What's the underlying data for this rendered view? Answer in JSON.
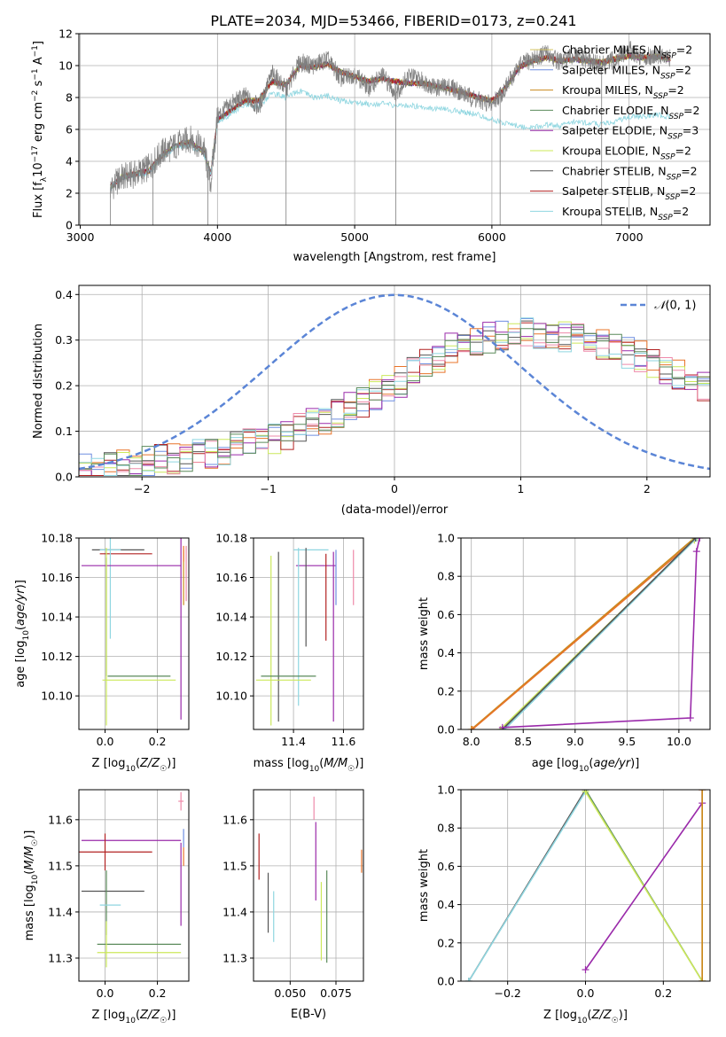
{
  "figure": {
    "title": "PLATE=2034, MJD=53466, FIBERID=0173, z=0.241",
    "colors": {
      "chabrier_miles": "#d4c463",
      "salpeter_miles": "#6e8de0",
      "kroupa_miles": "#c98a1c",
      "chabrier_elodie": "#5a8a5a",
      "salpeter_elodie": "#9a2aaa",
      "kroupa_elodie": "#cce85a",
      "chabrier_stelib": "#555555",
      "salpeter_stelib": "#b22222",
      "kroupa_stelib": "#8fd6e0",
      "orange": "#e8742a",
      "pink": "#ee8aaa",
      "data": "#808080"
    }
  },
  "chart_data": [
    {
      "type": "line",
      "id": "spectrum",
      "xlabel": "wavelength [Angstrom, rest frame]",
      "ylabel": "Flux [fλ10⁻¹⁷ erg cm⁻² s⁻¹ A⁻¹]",
      "xlim": [
        2990,
        7590
      ],
      "ylim": [
        0,
        12
      ],
      "xticks": [
        3000,
        4000,
        5000,
        6000,
        7000
      ],
      "yticks": [
        0,
        2,
        4,
        6,
        8,
        10,
        12
      ],
      "legend_position": "right",
      "legend": [
        "Chabrier MILES, N_SSP=2",
        "Salpeter MILES, N_SSP=2",
        "Kroupa MILES, N_SSP=2",
        "Chabrier ELODIE, N_SSP=2",
        "Salpeter ELODIE, N_SSP=3",
        "Kroupa ELODIE, N_SSP=2",
        "Chabrier STELIB, N_SSP=2",
        "Salpeter STELIB, N_SSP=2",
        "Kroupa STELIB, N_SSP=2"
      ],
      "legend_keys": [
        "chabrier_miles",
        "salpeter_miles",
        "kroupa_miles",
        "chabrier_elodie",
        "salpeter_elodie",
        "kroupa_elodie",
        "chabrier_stelib",
        "salpeter_stelib",
        "kroupa_stelib"
      ],
      "data_x": [
        3220,
        3300,
        3400,
        3500,
        3600,
        3700,
        3800,
        3900,
        3950,
        4000,
        4100,
        4200,
        4300,
        4400,
        4500,
        4600,
        4700,
        4800,
        4900,
        5000,
        5100,
        5200,
        5300,
        5400,
        5500,
        5600,
        5700,
        5800,
        5900,
        6000,
        6100,
        6200,
        6300,
        6400,
        6500,
        6600,
        6700,
        6800,
        6900,
        7000,
        7100,
        7200,
        7300
      ],
      "data_y": [
        2.3,
        3.0,
        3.2,
        3.6,
        4.6,
        5.0,
        5.4,
        4.8,
        2.6,
        6.8,
        7.6,
        8.1,
        7.4,
        9.5,
        8.5,
        10.2,
        10.0,
        10.4,
        9.2,
        9.5,
        8.6,
        9.4,
        8.3,
        9.4,
        9.0,
        8.6,
        8.7,
        8.2,
        7.8,
        7.6,
        8.6,
        10.0,
        10.4,
        10.8,
        10.2,
        10.6,
        10.3,
        10.0,
        10.4,
        11.0,
        10.5,
        10.7,
        10.4
      ],
      "model_y": [
        2.4,
        3.0,
        3.2,
        3.4,
        4.4,
        5.0,
        5.2,
        4.6,
        3.2,
        6.6,
        7.2,
        7.8,
        7.8,
        9.0,
        8.8,
        10.0,
        9.9,
        10.1,
        9.6,
        9.3,
        9.0,
        9.2,
        9.0,
        8.9,
        8.9,
        8.7,
        8.5,
        8.3,
        8.0,
        7.8,
        8.6,
        9.9,
        10.3,
        10.5,
        10.3,
        10.4,
        10.3,
        10.2,
        10.4,
        10.6,
        10.5,
        10.6,
        10.4
      ],
      "model_y_stelib": [
        2.3,
        3.0,
        3.1,
        3.3,
        4.3,
        4.9,
        5.0,
        4.5,
        3.1,
        6.4,
        7.0,
        7.5,
        7.4,
        8.3,
        8.0,
        8.4,
        8.0,
        8.1,
        7.8,
        7.7,
        7.6,
        7.6,
        7.5,
        7.5,
        7.4,
        7.3,
        7.2,
        7.1,
        6.9,
        6.6,
        6.4,
        6.2,
        6.1,
        6.3,
        6.2,
        6.5,
        6.4,
        6.3,
        6.5,
        6.8,
        6.8,
        6.9,
        6.8
      ]
    },
    {
      "type": "line",
      "id": "residuals",
      "xlabel": "(data-model)/error",
      "ylabel": "Normed distribution",
      "xlim": [
        -2.5,
        2.5
      ],
      "ylim": [
        0,
        0.42
      ],
      "xticks": [
        -2,
        -1,
        0,
        1,
        2
      ],
      "yticks": [
        0.0,
        0.1,
        0.2,
        0.3,
        0.4
      ],
      "legend_position": "top-right",
      "legend": [
        "N(0, 1)"
      ],
      "gaussian": {
        "mean": 0,
        "sigma": 1
      },
      "hist_bin_width": 0.1,
      "hist_envelope_x": [
        -2.5,
        -2.0,
        -1.5,
        -1.0,
        -0.5,
        0.0,
        0.5,
        1.0,
        1.5,
        2.0,
        2.5
      ],
      "hist_envelope_y": [
        0.02,
        0.03,
        0.05,
        0.08,
        0.13,
        0.2,
        0.29,
        0.32,
        0.3,
        0.26,
        0.19
      ]
    },
    {
      "type": "scatter",
      "id": "age_vs_Z",
      "xlabel": "Z [log₁₀(Z/Z☉)]",
      "ylabel": "age  [log₁₀(age/yr)]",
      "xlim": [
        -0.1,
        0.32
      ],
      "ylim": [
        10.083,
        10.18
      ],
      "xticks": [
        0.0,
        0.2
      ],
      "yticks": [
        10.1,
        10.12,
        10.14,
        10.16,
        10.18
      ],
      "points": [
        {
          "key": "chabrier_stelib",
          "x": 0.05,
          "y": 10.174,
          "xerr": 0.1,
          "yerr": 0.0
        },
        {
          "key": "salpeter_stelib",
          "x": 0.08,
          "y": 10.172,
          "xerr": 0.1,
          "yerr": 0.0
        },
        {
          "key": "kroupa_stelib",
          "x": 0.02,
          "y": 10.174,
          "xerr": 0.04,
          "yerr": 0.045
        },
        {
          "key": "salpeter_elodie",
          "x": 0.1,
          "y": 10.166,
          "xerr": 0.19,
          "yerr": 0.0
        },
        {
          "key": "salpeter_elodie",
          "x": 0.29,
          "y": 10.14,
          "xerr": 0.0,
          "yerr": 0.052
        },
        {
          "key": "kroupa_miles",
          "x": 0.3,
          "y": 10.16,
          "xerr": 0.0,
          "yerr": 0.014
        },
        {
          "key": "pink",
          "x": 0.31,
          "y": 10.162,
          "xerr": 0.0,
          "yerr": 0.014
        },
        {
          "key": "orange",
          "x": 0.3,
          "y": 10.172,
          "xerr": 0.0,
          "yerr": 0.004
        },
        {
          "key": "chabrier_elodie",
          "x": 0.005,
          "y": 10.14,
          "xerr": 0.0,
          "yerr": 0.03
        },
        {
          "key": "kroupa_elodie",
          "x": 0.005,
          "y": 10.13,
          "xerr": 0.0,
          "yerr": 0.045
        },
        {
          "key": "chabrier_elodie",
          "x": 0.13,
          "y": 10.11,
          "xerr": 0.12,
          "yerr": 0.0
        },
        {
          "key": "kroupa_elodie",
          "x": 0.13,
          "y": 10.108,
          "xerr": 0.14,
          "yerr": 0.0
        }
      ]
    },
    {
      "type": "scatter",
      "id": "age_vs_mass",
      "xlabel": "mass [log₁₀(M/M☉)]",
      "ylabel": "",
      "xlim": [
        11.24,
        11.68
      ],
      "ylim": [
        10.083,
        10.18
      ],
      "xticks": [
        11.4,
        11.6
      ],
      "yticks": [
        10.1,
        10.12,
        10.14,
        10.16,
        10.18
      ],
      "points": [
        {
          "key": "kroupa_stelib",
          "x": 11.47,
          "y": 10.174,
          "xerr": 0.07,
          "yerr": 0.0
        },
        {
          "key": "salpeter_elodie",
          "x": 11.49,
          "y": 10.166,
          "xerr": 0.08,
          "yerr": 0.0
        },
        {
          "key": "kroupa_elodie",
          "x": 11.31,
          "y": 10.128,
          "xerr": 0.0,
          "yerr": 0.043
        },
        {
          "key": "chabrier_stelib",
          "x": 11.34,
          "y": 10.13,
          "xerr": 0.0,
          "yerr": 0.043
        },
        {
          "key": "kroupa_stelib",
          "x": 11.42,
          "y": 10.135,
          "xerr": 0.0,
          "yerr": 0.04
        },
        {
          "key": "chabrier_stelib",
          "x": 11.45,
          "y": 10.15,
          "xerr": 0.0,
          "yerr": 0.025
        },
        {
          "key": "salpeter_stelib",
          "x": 11.53,
          "y": 10.15,
          "xerr": 0.0,
          "yerr": 0.022
        },
        {
          "key": "salpeter_elodie",
          "x": 11.56,
          "y": 10.13,
          "xerr": 0.0,
          "yerr": 0.043
        },
        {
          "key": "salpeter_miles",
          "x": 11.57,
          "y": 10.16,
          "xerr": 0.0,
          "yerr": 0.014
        },
        {
          "key": "pink",
          "x": 11.64,
          "y": 10.16,
          "xerr": 0.0,
          "yerr": 0.014
        },
        {
          "key": "chabrier_elodie",
          "x": 11.38,
          "y": 10.11,
          "xerr": 0.11,
          "yerr": 0.0
        },
        {
          "key": "kroupa_elodie",
          "x": 11.36,
          "y": 10.108,
          "xerr": 0.11,
          "yerr": 0.0
        }
      ]
    },
    {
      "type": "line",
      "id": "cum_mass_vs_age",
      "xlabel": "age  [log₁₀(age/yr)]",
      "ylabel": "mass weight",
      "xlim": [
        7.9,
        10.3
      ],
      "ylim": [
        0,
        1.0
      ],
      "xticks": [
        8.0,
        8.5,
        9.0,
        9.5,
        10.0
      ],
      "yticks": [
        0.0,
        0.2,
        0.4,
        0.6,
        0.8,
        1.0
      ],
      "series": [
        {
          "key": "kroupa_miles",
          "x": [
            8.0,
            10.15
          ],
          "y": [
            0.0,
            1.0
          ]
        },
        {
          "key": "orange",
          "x": [
            8.01,
            10.15
          ],
          "y": [
            0.0,
            0.99
          ]
        },
        {
          "key": "kroupa_elodie",
          "x": [
            8.28,
            10.15
          ],
          "y": [
            0.0,
            0.99
          ]
        },
        {
          "key": "chabrier_elodie",
          "x": [
            8.3,
            10.17
          ],
          "y": [
            0.0,
            1.0
          ]
        },
        {
          "key": "kroupa_stelib",
          "x": [
            8.32,
            10.17
          ],
          "y": [
            0.0,
            1.0
          ]
        },
        {
          "key": "chabrier_stelib",
          "x": [
            8.3,
            10.16
          ],
          "y": [
            0.0,
            1.0
          ]
        },
        {
          "key": "salpeter_elodie",
          "x": [
            8.3,
            10.11,
            10.17,
            10.2
          ],
          "y": [
            0.01,
            0.06,
            0.93,
            1.0
          ]
        }
      ]
    },
    {
      "type": "scatter",
      "id": "mass_vs_Z",
      "xlabel": "Z [log₁₀(Z/Z☉)]",
      "ylabel": "mass [log₁₀(M/M☉)]",
      "xlim": [
        -0.1,
        0.32
      ],
      "ylim": [
        11.25,
        11.665
      ],
      "xticks": [
        0.0,
        0.2
      ],
      "yticks": [
        11.3,
        11.4,
        11.5,
        11.6
      ],
      "points": [
        {
          "key": "pink",
          "x": 0.29,
          "y": 11.64,
          "xerr": 0.01,
          "yerr": 0.02
        },
        {
          "key": "salpeter_elodie",
          "x": 0.1,
          "y": 11.555,
          "xerr": 0.19,
          "yerr": 0.0
        },
        {
          "key": "salpeter_elodie",
          "x": 0.29,
          "y": 11.46,
          "xerr": 0.0,
          "yerr": 0.09
        },
        {
          "key": "salpeter_miles",
          "x": 0.3,
          "y": 11.56,
          "xerr": 0.0,
          "yerr": 0.02
        },
        {
          "key": "orange",
          "x": 0.3,
          "y": 11.52,
          "xerr": 0.0,
          "yerr": 0.02
        },
        {
          "key": "salpeter_stelib",
          "x": 0.04,
          "y": 11.53,
          "xerr": 0.14,
          "yerr": 0.0
        },
        {
          "key": "salpeter_stelib",
          "x": 0.0,
          "y": 11.53,
          "xerr": 0.0,
          "yerr": 0.04
        },
        {
          "key": "chabrier_stelib",
          "x": 0.03,
          "y": 11.445,
          "xerr": 0.12,
          "yerr": 0.0
        },
        {
          "key": "chabrier_elodie",
          "x": 0.005,
          "y": 11.42,
          "xerr": 0.0,
          "yerr": 0.07
        },
        {
          "key": "kroupa_stelib",
          "x": 0.02,
          "y": 11.415,
          "xerr": 0.04,
          "yerr": 0.0
        },
        {
          "key": "chabrier_elodie",
          "x": 0.13,
          "y": 11.33,
          "xerr": 0.16,
          "yerr": 0.0
        },
        {
          "key": "kroupa_elodie",
          "x": 0.13,
          "y": 11.312,
          "xerr": 0.16,
          "yerr": 0.0
        },
        {
          "key": "kroupa_elodie",
          "x": 0.005,
          "y": 11.33,
          "xerr": 0.0,
          "yerr": 0.05
        }
      ]
    },
    {
      "type": "scatter",
      "id": "mass_vs_ebv",
      "xlabel": "E(B-V)",
      "ylabel": "",
      "xlim": [
        0.03,
        0.09
      ],
      "ylim": [
        11.25,
        11.665
      ],
      "xticks": [
        0.05,
        0.075
      ],
      "xtick_labels": [
        "0.050",
        "0.075"
      ],
      "yticks": [
        11.3,
        11.4,
        11.5,
        11.6
      ],
      "points": [
        {
          "key": "salpeter_stelib",
          "x": 0.033,
          "y": 11.52,
          "xerr": 0.0,
          "yerr": 0.05
        },
        {
          "key": "chabrier_stelib",
          "x": 0.038,
          "y": 11.42,
          "xerr": 0.0,
          "yerr": 0.065
        },
        {
          "key": "kroupa_stelib",
          "x": 0.041,
          "y": 11.39,
          "xerr": 0.0,
          "yerr": 0.055
        },
        {
          "key": "pink",
          "x": 0.063,
          "y": 11.625,
          "xerr": 0.0,
          "yerr": 0.025
        },
        {
          "key": "salpeter_elodie",
          "x": 0.064,
          "y": 11.51,
          "xerr": 0.0,
          "yerr": 0.085
        },
        {
          "key": "kroupa_elodie",
          "x": 0.067,
          "y": 11.38,
          "xerr": 0.0,
          "yerr": 0.085
        },
        {
          "key": "chabrier_elodie",
          "x": 0.07,
          "y": 11.39,
          "xerr": 0.0,
          "yerr": 0.1
        },
        {
          "key": "orange",
          "x": 0.089,
          "y": 11.51,
          "xerr": 0.0,
          "yerr": 0.025
        }
      ]
    },
    {
      "type": "line",
      "id": "cum_mass_vs_Z",
      "xlabel": "Z [log₁₀(Z/Z☉)]",
      "ylabel": "mass weight",
      "xlim": [
        -0.32,
        0.32
      ],
      "ylim": [
        0,
        1.0
      ],
      "xticks": [
        -0.2,
        0.0,
        0.2
      ],
      "yticks": [
        0.0,
        0.2,
        0.4,
        0.6,
        0.8,
        1.0
      ],
      "series": [
        {
          "key": "chabrier_stelib",
          "x": [
            -0.3,
            0.0
          ],
          "y": [
            0.0,
            1.0
          ]
        },
        {
          "key": "kroupa_stelib",
          "x": [
            -0.3,
            0.0
          ],
          "y": [
            0.0,
            0.99
          ]
        },
        {
          "key": "chabrier_elodie",
          "x": [
            0.0,
            0.3
          ],
          "y": [
            1.0,
            0.0
          ]
        },
        {
          "key": "kroupa_elodie",
          "x": [
            0.0,
            0.3
          ],
          "y": [
            0.99,
            0.0
          ]
        },
        {
          "key": "salpeter_elodie",
          "x": [
            0.0,
            0.3,
            0.3
          ],
          "y": [
            0.06,
            0.93,
            1.0
          ]
        },
        {
          "key": "orange",
          "x": [
            0.3,
            0.3
          ],
          "y": [
            0.0,
            1.0
          ]
        },
        {
          "key": "kroupa_miles",
          "x": [
            0.3,
            0.3
          ],
          "y": [
            0.0,
            1.0
          ]
        }
      ]
    }
  ]
}
